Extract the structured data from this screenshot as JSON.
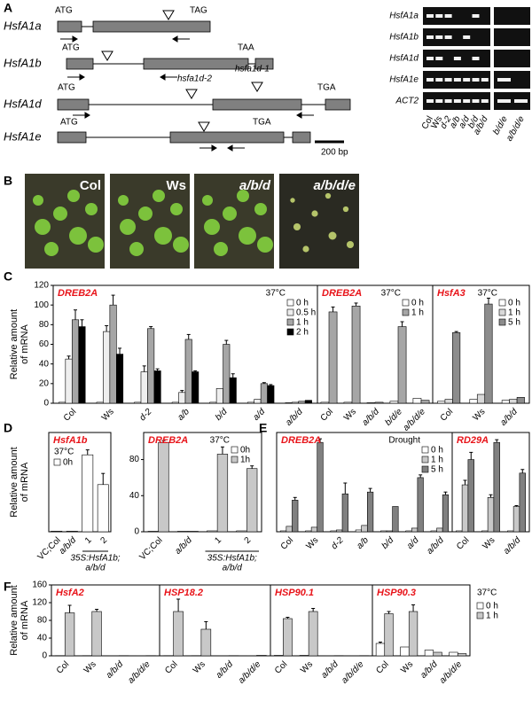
{
  "panel_labels": [
    "A",
    "B",
    "C",
    "D",
    "E",
    "F"
  ],
  "gene_diagram": {
    "genes": [
      {
        "name": "HsfA1a",
        "start": "ATG",
        "stop": "TAG"
      },
      {
        "name": "HsfA1b",
        "start": "ATG",
        "stop": "TAA"
      },
      {
        "name": "HsfA1d",
        "start": "ATG",
        "stop": "TGA",
        "insertions": [
          "hsfa1d-2",
          "hsfa1d-1"
        ]
      },
      {
        "name": "HsfA1e",
        "start": "ATG",
        "stop": "TGA"
      }
    ],
    "scale_bar": "200 bp"
  },
  "gel": {
    "rows": [
      "HsfA1a",
      "HsfA1b",
      "HsfA1d",
      "HsfA1e",
      "ACT2"
    ],
    "lanes": [
      "Col",
      "Ws",
      "d-2",
      "a/b",
      "a/d",
      "b/d",
      "a/b/d",
      "b/d/e",
      "a/b/d/e"
    ]
  },
  "photos": {
    "labels": [
      "Col",
      "Ws",
      "a/b/d",
      "a/b/d/e"
    ]
  },
  "chart_data": [
    {
      "type": "bar",
      "title": "DREB2A",
      "condition": "37°C",
      "ylabel": [
        "Relative amount",
        "of mRNA"
      ],
      "categories": [
        "Col",
        "Ws",
        "d-2",
        "a/b",
        "b/d",
        "a/d",
        "a/b/d"
      ],
      "ylim": [
        0,
        120
      ],
      "yticks": [
        0,
        20,
        40,
        60,
        80,
        100,
        120
      ],
      "legend": "upper right",
      "series": [
        {
          "name": "0 h",
          "color": "#ffffff",
          "values": [
            1,
            1,
            1,
            1,
            1,
            1,
            0.5
          ]
        },
        {
          "name": "0.5 h",
          "color": "#eeeeee",
          "values": [
            45,
            73,
            32,
            11,
            15,
            4,
            1
          ],
          "errors": [
            3,
            6,
            6,
            2,
            0,
            0,
            0
          ]
        },
        {
          "name": "1 h",
          "color": "#a6a6a6",
          "values": [
            85,
            100,
            76,
            65,
            60,
            20,
            2
          ],
          "errors": [
            10,
            10,
            2,
            5,
            4,
            1,
            0
          ]
        },
        {
          "name": "2 h",
          "color": "#000000",
          "values": [
            78,
            50,
            33,
            32,
            26,
            18,
            3
          ],
          "errors": [
            7,
            6,
            2,
            1,
            4,
            1,
            0
          ]
        }
      ]
    },
    {
      "type": "bar",
      "title": "DREB2A",
      "condition": "37°C",
      "categories": [
        "Col",
        "Ws",
        "a/b/d",
        "b/d/e",
        "a/b/d/e"
      ],
      "ylim": [
        0,
        120
      ],
      "legend": "upper right",
      "series": [
        {
          "name": "0 h",
          "color": "#ffffff",
          "values": [
            1,
            1,
            0.5,
            2,
            5
          ]
        },
        {
          "name": "1 h",
          "color": "#a6a6a6",
          "values": [
            93,
            99,
            1,
            78,
            3
          ],
          "errors": [
            5,
            3,
            0,
            5,
            0
          ]
        }
      ]
    },
    {
      "type": "bar",
      "title": "HsfA3",
      "condition": "37°C",
      "categories": [
        "Col",
        "Ws",
        "a/b/d"
      ],
      "ylim": [
        0,
        120
      ],
      "legend": "upper right",
      "series": [
        {
          "name": "0 h",
          "color": "#ffffff",
          "values": [
            2,
            4,
            3
          ]
        },
        {
          "name": "1 h",
          "color": "#d9d9d9",
          "values": [
            4,
            9,
            4
          ]
        },
        {
          "name": "5 h",
          "color": "#8c8c8c",
          "values": [
            72,
            101,
            6
          ],
          "errors": [
            1,
            6,
            0
          ]
        }
      ]
    },
    {
      "type": "bar",
      "title": "HsfA1b",
      "condition": "37°C",
      "ylabel": [
        "Relative amount",
        "of mRNA"
      ],
      "categories": [
        "VC;Col",
        "a/b/d",
        "1",
        "2"
      ],
      "group_label": [
        "35S:HsfA1b;",
        "a/b/d"
      ],
      "ylim": [
        0,
        80
      ],
      "legend": "upper left",
      "series": [
        {
          "name": "0h",
          "color": "#ffffff",
          "values": [
            0.5,
            0.5,
            62,
            38
          ],
          "errors": [
            0,
            0,
            4,
            9
          ]
        }
      ]
    },
    {
      "type": "bar",
      "title": "DREB2A",
      "condition": "37°C",
      "categories": [
        "VC;Col",
        "a/b/d",
        "1",
        "2"
      ],
      "group_label": [
        "35S:HsfA1b;",
        "a/b/d"
      ],
      "ylim": [
        0,
        110
      ],
      "yticks": [
        0,
        40,
        80
      ],
      "legend": "upper right",
      "series": [
        {
          "name": "0h",
          "color": "#ffffff",
          "values": [
            0.5,
            0.5,
            1,
            1
          ]
        },
        {
          "name": "1h",
          "color": "#c8c8c8",
          "values": [
            99,
            0.5,
            86,
            70
          ],
          "errors": [
            2,
            0,
            8,
            3
          ]
        }
      ]
    },
    {
      "type": "bar",
      "title": "DREB2A",
      "condition": "Drought",
      "categories": [
        "Col",
        "Ws",
        "d-2",
        "a/b",
        "b/d",
        "a/d",
        "a/b/d"
      ],
      "ylim": [
        0,
        110
      ],
      "legend": "upper right",
      "series": [
        {
          "name": "0 h",
          "color": "#ffffff",
          "values": [
            1,
            1,
            1,
            2,
            1,
            1,
            1
          ]
        },
        {
          "name": "1 h",
          "color": "#c8c8c8",
          "values": [
            6,
            5,
            2,
            7,
            1,
            4,
            4
          ]
        },
        {
          "name": "5 h",
          "color": "#808080",
          "values": [
            35,
            99,
            42,
            44,
            28,
            60,
            41
          ],
          "errors": [
            3,
            4,
            12,
            4,
            0,
            3,
            3
          ]
        }
      ]
    },
    {
      "type": "bar",
      "title": "RD29A",
      "categories": [
        "Col",
        "Ws",
        "a/b/d"
      ],
      "ylim": [
        0,
        110
      ],
      "series": [
        {
          "name": "0 h",
          "color": "#ffffff",
          "values": [
            1,
            1,
            1
          ]
        },
        {
          "name": "1 h",
          "color": "#c8c8c8",
          "values": [
            52,
            38,
            28
          ],
          "errors": [
            5,
            3,
            1
          ]
        },
        {
          "name": "5 h",
          "color": "#808080",
          "values": [
            80,
            99,
            65
          ],
          "errors": [
            8,
            3,
            4
          ]
        }
      ]
    },
    {
      "type": "bar",
      "title": "HsfA2",
      "ylabel": [
        "Relative amount",
        "of mRNA"
      ],
      "categories": [
        "Col",
        "Ws",
        "a/b/d",
        "a/b/d/e"
      ],
      "ylim": [
        0,
        160
      ],
      "yticks": [
        0,
        40,
        80,
        120,
        160
      ],
      "series": [
        {
          "name": "0 h",
          "color": "#ffffff",
          "values": [
            0.5,
            0.5,
            0.3,
            0.3
          ]
        },
        {
          "name": "1 h",
          "color": "#c8c8c8",
          "values": [
            97,
            100,
            0.5,
            0.5
          ],
          "errors": [
            17,
            5,
            0,
            0
          ]
        }
      ]
    },
    {
      "type": "bar",
      "title": "HSP18.2",
      "categories": [
        "Col",
        "Ws",
        "a/b/d",
        "a/b/d/e"
      ],
      "ylim": [
        0,
        160
      ],
      "series": [
        {
          "name": "0 h",
          "color": "#ffffff",
          "values": [
            0.5,
            0.5,
            0.3,
            0.3
          ]
        },
        {
          "name": "1 h",
          "color": "#c8c8c8",
          "values": [
            100,
            60,
            0.5,
            1
          ],
          "errors": [
            28,
            17,
            0,
            0
          ]
        }
      ]
    },
    {
      "type": "bar",
      "title": "HSP90.1",
      "categories": [
        "Col",
        "Ws",
        "a/b/d",
        "a/b/d/e"
      ],
      "ylim": [
        0,
        160
      ],
      "series": [
        {
          "name": "0 h",
          "color": "#ffffff",
          "values": [
            1,
            1,
            0.3,
            0.3
          ]
        },
        {
          "name": "1 h",
          "color": "#c8c8c8",
          "values": [
            84,
            100,
            0.5,
            0.5
          ],
          "errors": [
            3,
            7,
            0,
            0
          ]
        }
      ]
    },
    {
      "type": "bar",
      "title": "HSP90.3",
      "condition": "37°C",
      "categories": [
        "Col",
        "Ws",
        "a/b/d",
        "a/b/d/e"
      ],
      "ylim": [
        0,
        160
      ],
      "legend": "outside right",
      "series": [
        {
          "name": "0 h",
          "color": "#ffffff",
          "values": [
            28,
            20,
            13,
            8
          ],
          "errors": [
            3,
            0,
            0,
            0
          ]
        },
        {
          "name": "1 h",
          "color": "#c8c8c8",
          "values": [
            95,
            100,
            8,
            5
          ],
          "errors": [
            5,
            15,
            0,
            0
          ]
        }
      ]
    }
  ]
}
